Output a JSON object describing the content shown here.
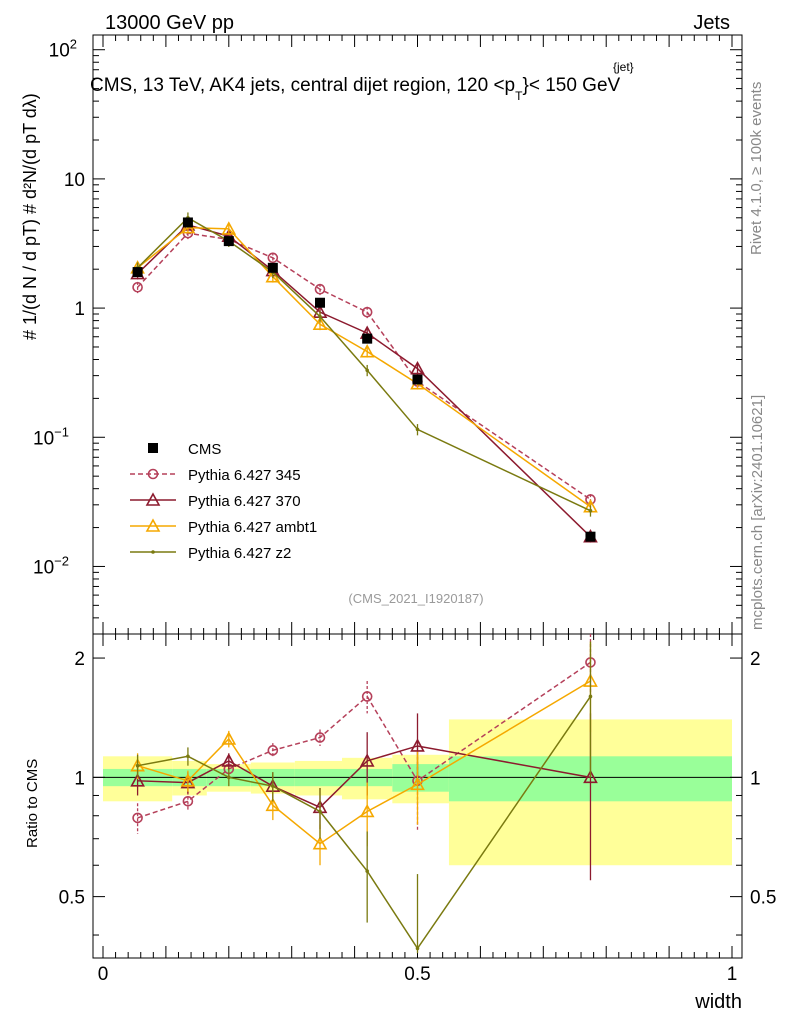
{
  "header": {
    "energy": "13000 GeV pp",
    "category": "Jets",
    "plot_title": "CMS, 13 TeV, AK4 jets, central dijet region, 120 <p",
    "title_sub": "T",
    "title_sup": "{jet}",
    "title_tail": "}< 150 GeV",
    "y_label_main": "# 1/(d N / d pT) # d²N/(d pT dλ)",
    "ratio_label": "Ratio to CMS",
    "x_label": "width",
    "analysis_id": "(CMS_2021_I1920187)",
    "side_text_top": "Rivet 4.1.0, ≥ 100k events",
    "side_text_bottom": "mcplots.cern.ch [arXiv:2401.10621]"
  },
  "colors": {
    "cms": "#000000",
    "p345": "#b5405a",
    "p370": "#8c1a2e",
    "ambt1": "#f5a800",
    "z2": "#7a7a10",
    "band_inner": "#99ff99",
    "band_outer": "#ffff99"
  },
  "chart_data": {
    "type": "line",
    "x_range": [
      0,
      1
    ],
    "x_ticks": [
      "0",
      "0.5",
      "1"
    ],
    "y_scale": "log",
    "y_range": [
      0.003,
      130
    ],
    "y_ticks": [
      {
        "value": 0.01,
        "base": "10",
        "exp": "−2"
      },
      {
        "value": 0.1,
        "base": "10",
        "exp": "−1"
      },
      {
        "value": 1,
        "base": "1",
        "exp": ""
      },
      {
        "value": 10,
        "base": "10",
        "exp": ""
      },
      {
        "value": 100,
        "base": "10",
        "exp": "2"
      }
    ],
    "ratio_range": [
      0.35,
      2.3
    ],
    "ratio_ticks": [
      "0.5",
      "1",
      "2"
    ],
    "x": [
      0.055,
      0.135,
      0.2,
      0.27,
      0.345,
      0.42,
      0.5,
      0.775
    ],
    "bin_edges": [
      0.0,
      0.11,
      0.165,
      0.235,
      0.305,
      0.38,
      0.46,
      0.55,
      1.0
    ],
    "band_inner": [
      0.05,
      0.05,
      0.05,
      0.05,
      0.05,
      0.05,
      0.08,
      0.13
    ],
    "band_outer": [
      0.13,
      0.1,
      0.08,
      0.09,
      0.1,
      0.12,
      0.14,
      0.4
    ],
    "legend_position": "lower-left",
    "series": [
      {
        "key": "cms",
        "name": "CMS",
        "marker": "square",
        "values": [
          1.9,
          4.6,
          3.3,
          2.05,
          1.1,
          0.58,
          0.28,
          0.017
        ]
      },
      {
        "key": "p345",
        "name": "Pythia 6.427 345",
        "marker": "circle",
        "dashed": true,
        "values": [
          1.45,
          3.8,
          3.4,
          2.45,
          1.4,
          0.93,
          0.27,
          0.033
        ],
        "ratio": [
          0.79,
          0.87,
          1.05,
          1.17,
          1.26,
          1.6,
          0.98,
          1.95
        ],
        "ratio_err": [
          0.07,
          0.05,
          0.04,
          0.05,
          0.06,
          0.15,
          0.25,
          0.35
        ]
      },
      {
        "key": "p370",
        "name": "Pythia 6.427 370",
        "marker": "triangle",
        "values": [
          1.85,
          4.4,
          3.6,
          1.95,
          0.93,
          0.64,
          0.34,
          0.017
        ],
        "ratio": [
          0.98,
          0.97,
          1.1,
          0.95,
          0.84,
          1.1,
          1.2,
          1.0
        ],
        "ratio_err": [
          0.08,
          0.06,
          0.05,
          0.08,
          0.1,
          0.2,
          0.25,
          0.45
        ]
      },
      {
        "key": "ambt1",
        "name": "Pythia 6.427 ambt1",
        "marker": "triangle",
        "values": [
          2.05,
          4.2,
          4.1,
          1.75,
          0.75,
          0.46,
          0.26,
          0.029
        ],
        "ratio": [
          1.07,
          0.98,
          1.25,
          0.85,
          0.68,
          0.82,
          0.96,
          1.75
        ],
        "ratio_err": [
          0.08,
          0.06,
          0.06,
          0.07,
          0.08,
          0.15,
          0.2,
          0.45
        ]
      },
      {
        "key": "z2",
        "name": "Pythia 6.427 z2",
        "marker": "dot",
        "values": [
          2.05,
          5.0,
          3.3,
          1.9,
          0.86,
          0.33,
          0.115,
          0.027
        ],
        "ratio": [
          1.07,
          1.13,
          1.0,
          0.95,
          0.82,
          0.58,
          0.37,
          1.6
        ],
        "ratio_err": [
          0.07,
          0.06,
          0.05,
          0.08,
          0.12,
          0.15,
          0.2,
          0.6
        ]
      }
    ]
  }
}
